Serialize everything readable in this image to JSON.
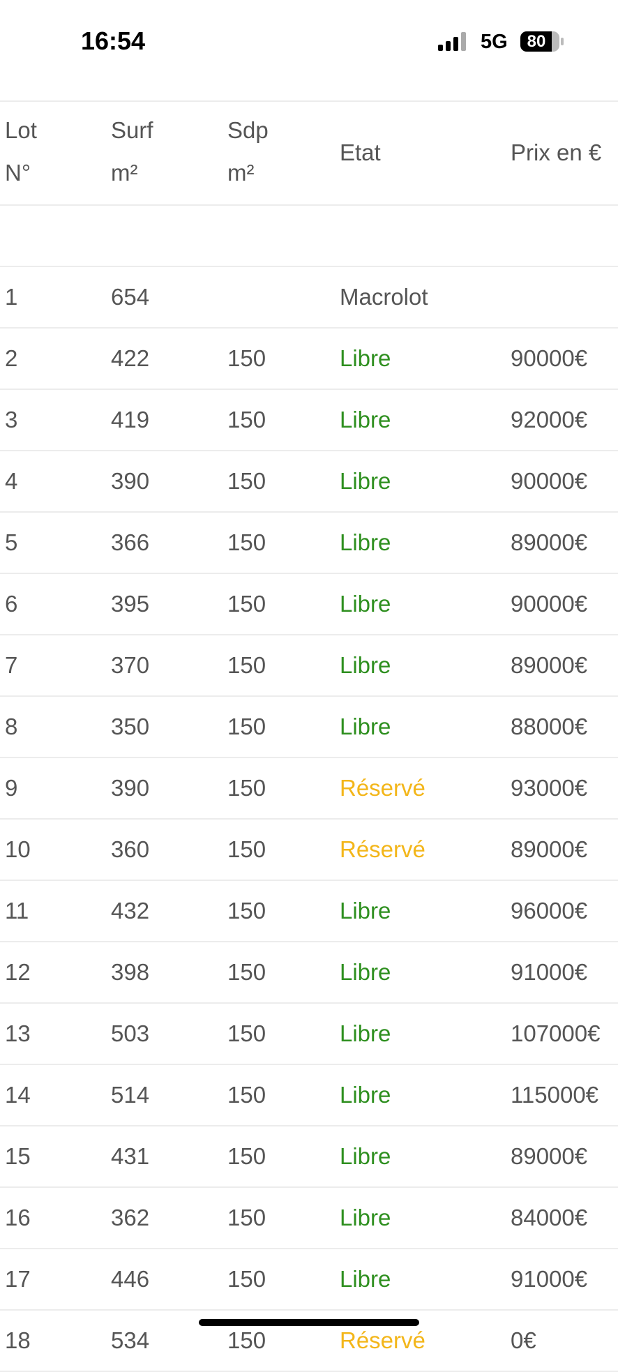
{
  "status_bar": {
    "time": "16:54",
    "network": "5G",
    "battery": "80"
  },
  "table": {
    "columns": [
      [
        "Lot",
        "N°"
      ],
      [
        "Surf",
        "m²"
      ],
      [
        "Sdp",
        "m²"
      ],
      [
        "Etat"
      ],
      [
        "Prix en €"
      ]
    ],
    "etat_colors": {
      "Libre": "#2e8f1f",
      "Réservé": "#f3b61a",
      "Macrolot": "#555555"
    },
    "rows": [
      [
        "1",
        "654",
        null,
        "Macrolot",
        null
      ],
      [
        "2",
        "422",
        "150",
        "Libre",
        "90000€"
      ],
      [
        "3",
        "419",
        "150",
        "Libre",
        "92000€"
      ],
      [
        "4",
        "390",
        "150",
        "Libre",
        "90000€"
      ],
      [
        "5",
        "366",
        "150",
        "Libre",
        "89000€"
      ],
      [
        "6",
        "395",
        "150",
        "Libre",
        "90000€"
      ],
      [
        "7",
        "370",
        "150",
        "Libre",
        "89000€"
      ],
      [
        "8",
        "350",
        "150",
        "Libre",
        "88000€"
      ],
      [
        "9",
        "390",
        "150",
        "Réservé",
        "93000€"
      ],
      [
        "10",
        "360",
        "150",
        "Réservé",
        "89000€"
      ],
      [
        "11",
        "432",
        "150",
        "Libre",
        "96000€"
      ],
      [
        "12",
        "398",
        "150",
        "Libre",
        "91000€"
      ],
      [
        "13",
        "503",
        "150",
        "Libre",
        "107000€"
      ],
      [
        "14",
        "514",
        "150",
        "Libre",
        "115000€"
      ],
      [
        "15",
        "431",
        "150",
        "Libre",
        "89000€"
      ],
      [
        "16",
        "362",
        "150",
        "Libre",
        "84000€"
      ],
      [
        "17",
        "446",
        "150",
        "Libre",
        "91000€"
      ],
      [
        "18",
        "534",
        "150",
        "Réservé",
        "0€"
      ]
    ]
  }
}
